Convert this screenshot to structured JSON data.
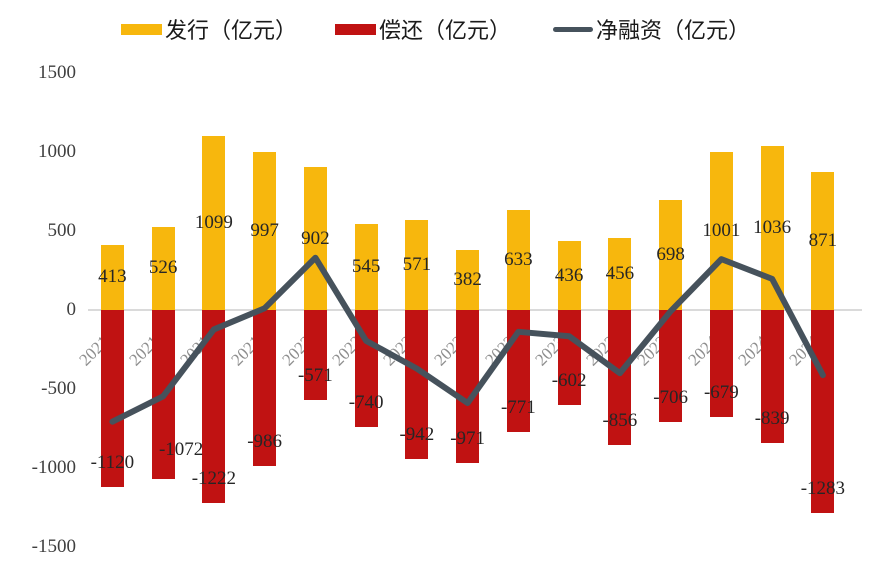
{
  "chart_data": {
    "type": "combo",
    "categories": [
      "2021Q1",
      "2021Q2",
      "2021Q3",
      "2021Q4",
      "2022Q1",
      "2022Q2",
      "2022Q3",
      "2022Q4",
      "2023Q1",
      "2023Q2",
      "2023Q3",
      "2023Q4",
      "2024Q1",
      "2024Q2",
      "2024Q3"
    ],
    "series": [
      {
        "name": "发行（亿元）",
        "type": "bar",
        "color": "#F7B70D",
        "values": [
          413,
          526,
          1099,
          997,
          902,
          545,
          571,
          382,
          633,
          436,
          456,
          698,
          1001,
          1036,
          871
        ]
      },
      {
        "name": "偿还（亿元）",
        "type": "bar",
        "color": "#C01212",
        "values": [
          -1120,
          -1072,
          -1222,
          -986,
          -571,
          -740,
          -942,
          -971,
          -771,
          -602,
          -856,
          -706,
          -679,
          -839,
          -1283
        ]
      },
      {
        "name": "净融资（亿元）",
        "type": "line",
        "color": "#46525C",
        "values": [
          -707,
          -546,
          -123,
          11,
          331,
          -195,
          -371,
          -589,
          -138,
          -166,
          -400,
          -8,
          322,
          197,
          -412
        ]
      }
    ],
    "y_axis": {
      "min": -1500,
      "max": 1500,
      "tick_step": 500,
      "ticks": [
        1500,
        1000,
        500,
        0,
        -500,
        -1000,
        -1500
      ]
    },
    "grid": "zero-line-only",
    "legend_position": "top",
    "data_labels": {
      "bar1_position": "center",
      "bar2_position": "inside-end"
    }
  },
  "colors": {
    "background": "#FFFFFF",
    "zero_line": "#DADADA",
    "axis_text": "#3F3F3F",
    "category_text": "#8F8F8F",
    "data_label_text": "#262626"
  }
}
